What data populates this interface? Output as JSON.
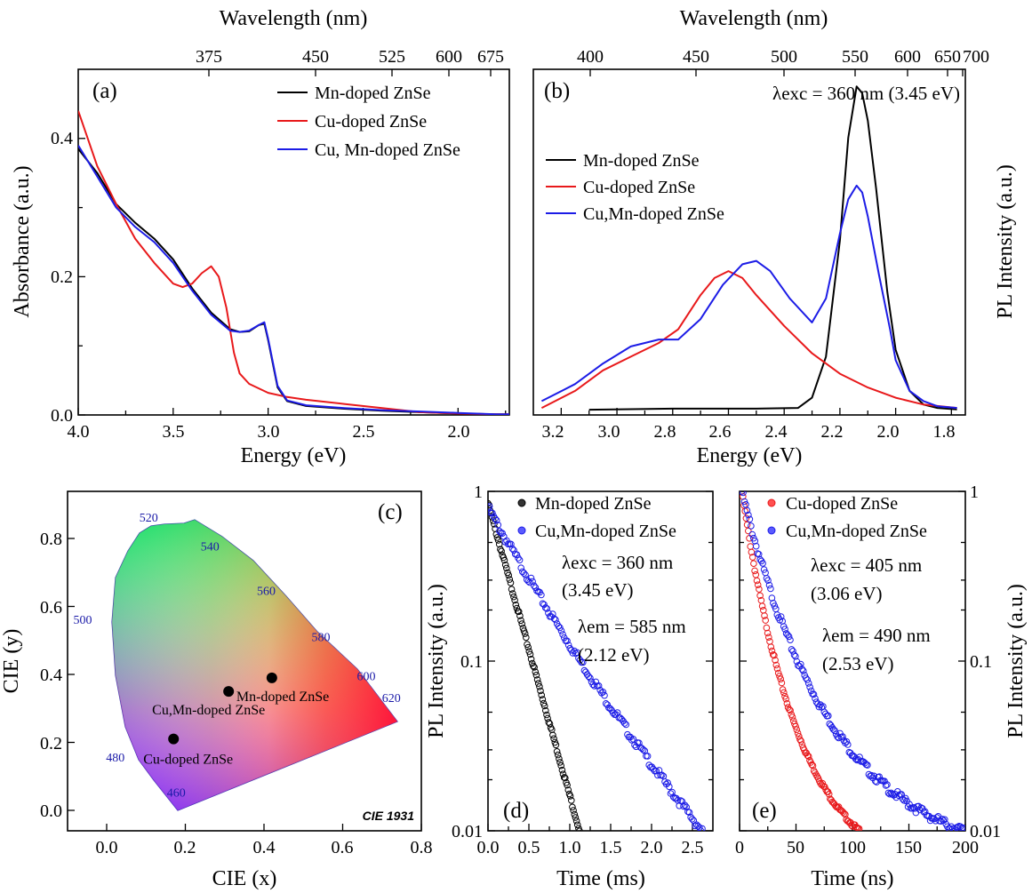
{
  "colors": {
    "mn": "#000000",
    "cu": "#e8191b",
    "cumn": "#1c1ce6",
    "wl_text": "#1a1aa8"
  },
  "chart_data": [
    {
      "panel": "(a)",
      "type": "line",
      "xlabel": "Energy (eV)",
      "ylabel": "Absorbance (a.u.)",
      "top_label": "Wavelength (nm)",
      "xlim": [
        4.0,
        1.73
      ],
      "ylim": [
        0,
        0.5
      ],
      "x_ticks": [
        "4.0",
        "3.5",
        "3.0",
        "2.5",
        "2.0"
      ],
      "y_ticks": [
        "0.0",
        "0.2",
        "0.4"
      ],
      "top_ticks": [
        "375",
        "450",
        "525",
        "600",
        "675"
      ],
      "series": [
        {
          "name": "Mn-doped ZnSe",
          "color": "#000000",
          "x": [
            4.0,
            3.9,
            3.8,
            3.7,
            3.6,
            3.5,
            3.4,
            3.3,
            3.2,
            3.15,
            3.1,
            3.05,
            3.02,
            3.0,
            2.95,
            2.9,
            2.8,
            2.6,
            2.4,
            2.2,
            2.0,
            1.8,
            1.73
          ],
          "y": [
            0.385,
            0.35,
            0.305,
            0.278,
            0.255,
            0.225,
            0.183,
            0.148,
            0.124,
            0.12,
            0.121,
            0.13,
            0.132,
            0.108,
            0.04,
            0.02,
            0.013,
            0.009,
            0.006,
            0.004,
            0.002,
            0.001,
            0.001
          ]
        },
        {
          "name": "Cu-doped ZnSe",
          "color": "#e8191b",
          "x": [
            4.0,
            3.9,
            3.8,
            3.7,
            3.6,
            3.5,
            3.45,
            3.4,
            3.35,
            3.3,
            3.26,
            3.22,
            3.18,
            3.15,
            3.1,
            3.0,
            2.9,
            2.8,
            2.6,
            2.4,
            2.2,
            2.0,
            1.8,
            1.73
          ],
          "y": [
            0.44,
            0.36,
            0.305,
            0.255,
            0.22,
            0.19,
            0.185,
            0.19,
            0.205,
            0.215,
            0.2,
            0.155,
            0.09,
            0.06,
            0.045,
            0.032,
            0.026,
            0.022,
            0.016,
            0.01,
            0.004,
            0.002,
            0.001,
            0.001
          ]
        },
        {
          "name": "Cu, Mn-doped ZnSe",
          "color": "#1c1ce6",
          "x": [
            4.0,
            3.9,
            3.8,
            3.7,
            3.6,
            3.5,
            3.4,
            3.3,
            3.2,
            3.15,
            3.1,
            3.05,
            3.02,
            3.0,
            2.95,
            2.9,
            2.8,
            2.6,
            2.4,
            2.2,
            2.0,
            1.8,
            1.73
          ],
          "y": [
            0.39,
            0.345,
            0.3,
            0.272,
            0.25,
            0.22,
            0.18,
            0.145,
            0.122,
            0.12,
            0.122,
            0.13,
            0.134,
            0.11,
            0.042,
            0.021,
            0.014,
            0.01,
            0.007,
            0.005,
            0.003,
            0.001,
            0.001
          ]
        }
      ]
    },
    {
      "panel": "(b)",
      "type": "line",
      "xlabel": "Energy (eV)",
      "ylabel": "PL Intensity (a.u.)",
      "top_label": "Wavelength (nm)",
      "annotation": "λexc = 360 nm (3.45 eV)",
      "xlim": [
        3.3,
        1.75
      ],
      "ylim": [
        0,
        1.0
      ],
      "x_ticks": [
        "3.2",
        "3.0",
        "2.8",
        "2.6",
        "2.4",
        "2.2",
        "2.0",
        "1.8"
      ],
      "top_ticks": [
        "400",
        "450",
        "500",
        "550",
        "600",
        "650",
        "700"
      ],
      "series": [
        {
          "name": "Mn-doped ZnSe",
          "color": "#000000",
          "x": [
            3.1,
            2.8,
            2.5,
            2.35,
            2.3,
            2.25,
            2.2,
            2.17,
            2.14,
            2.12,
            2.1,
            2.07,
            2.03,
            2.0,
            1.95,
            1.9,
            1.85,
            1.78
          ],
          "y": [
            0.005,
            0.008,
            0.008,
            0.01,
            0.04,
            0.16,
            0.5,
            0.8,
            0.95,
            0.93,
            0.85,
            0.65,
            0.35,
            0.18,
            0.06,
            0.02,
            0.01,
            0.006
          ]
        },
        {
          "name": "Cu-doped ZnSe",
          "color": "#e8191b",
          "x": [
            3.27,
            3.15,
            3.05,
            2.95,
            2.85,
            2.78,
            2.7,
            2.65,
            2.6,
            2.55,
            2.5,
            2.4,
            2.3,
            2.2,
            2.1,
            2.0,
            1.9,
            1.78
          ],
          "y": [
            0.01,
            0.06,
            0.12,
            0.16,
            0.2,
            0.24,
            0.34,
            0.39,
            0.41,
            0.39,
            0.34,
            0.25,
            0.17,
            0.11,
            0.07,
            0.04,
            0.02,
            0.01
          ]
        },
        {
          "name": "Cu,Mn-doped ZnSe",
          "color": "#1c1ce6",
          "x": [
            3.27,
            3.15,
            3.05,
            2.95,
            2.85,
            2.78,
            2.7,
            2.62,
            2.55,
            2.5,
            2.45,
            2.38,
            2.3,
            2.25,
            2.2,
            2.17,
            2.14,
            2.12,
            2.1,
            2.06,
            2.02,
            2.0,
            1.95,
            1.9,
            1.85,
            1.78
          ],
          "y": [
            0.03,
            0.08,
            0.14,
            0.19,
            0.21,
            0.21,
            0.27,
            0.37,
            0.43,
            0.44,
            0.41,
            0.33,
            0.26,
            0.33,
            0.52,
            0.62,
            0.66,
            0.64,
            0.57,
            0.4,
            0.24,
            0.15,
            0.06,
            0.03,
            0.015,
            0.01
          ]
        }
      ]
    },
    {
      "panel": "(c)",
      "type": "scatter",
      "xlabel": "CIE (x)",
      "ylabel": "CIE (y)",
      "diagram_label": "CIE 1931",
      "xlim": [
        -0.1,
        0.8
      ],
      "ylim": [
        -0.08,
        0.92
      ],
      "x_ticks": [
        "0.0",
        "0.2",
        "0.4",
        "0.6",
        "0.8"
      ],
      "y_ticks": [
        "0.0",
        "0.2",
        "0.4",
        "0.6",
        "0.8"
      ],
      "points": [
        {
          "label": "Mn-doped ZnSe",
          "x": 0.42,
          "y": 0.39
        },
        {
          "label": "Cu,Mn-doped ZnSe",
          "x": 0.31,
          "y": 0.35
        },
        {
          "label": "Cu-doped ZnSe",
          "x": 0.17,
          "y": 0.21
        }
      ],
      "wavelength_labels": [
        {
          "text": "520",
          "x": 0.074,
          "y": 0.834
        },
        {
          "text": "540",
          "x": 0.23,
          "y": 0.754
        },
        {
          "text": "560",
          "x": 0.373,
          "y": 0.624
        },
        {
          "text": "580",
          "x": 0.512,
          "y": 0.487
        },
        {
          "text": "600",
          "x": 0.627,
          "y": 0.373
        },
        {
          "text": "620",
          "x": 0.691,
          "y": 0.308
        },
        {
          "text": "500",
          "x": 0.008,
          "y": 0.538
        },
        {
          "text": "480",
          "x": 0.091,
          "y": 0.133
        },
        {
          "text": "460",
          "x": 0.144,
          "y": 0.03
        }
      ]
    },
    {
      "panel": "(d)",
      "type": "scatter",
      "xlabel": "Time (ms)",
      "ylabel": "PL Intensity (a.u.)",
      "yscale": "log",
      "xlim": [
        0,
        2.75
      ],
      "ylim": [
        0.01,
        1
      ],
      "x_ticks": [
        "0.0",
        "0.5",
        "1.0",
        "1.5",
        "2.0",
        "2.5"
      ],
      "y_ticks": [
        "0.01",
        "0.1",
        "1"
      ],
      "annotations": [
        "λexc = 360 nm",
        "(3.45 eV)",
        "λem = 585 nm",
        "(2.12 eV)"
      ],
      "series": [
        {
          "name": "Mn-doped ZnSe",
          "color": "#000000",
          "x_range": [
            0,
            1.12
          ],
          "y_start": 0.85,
          "y_end": 0.01
        },
        {
          "name": "Cu,Mn-doped ZnSe",
          "color": "#1c1ce6",
          "x_range": [
            0,
            2.62
          ],
          "y_start": 0.8,
          "y_end": 0.01
        }
      ]
    },
    {
      "panel": "(e)",
      "type": "scatter",
      "xlabel": "Time (ns)",
      "ylabel": "PL Intensity (a.u.)",
      "yscale": "log",
      "xlim": [
        0,
        200
      ],
      "ylim": [
        0.01,
        1
      ],
      "x_ticks": [
        "0",
        "50",
        "100",
        "150",
        "200"
      ],
      "y_ticks": [
        "0.01",
        "0.1",
        "1"
      ],
      "annotations": [
        "λexc = 405 nm",
        "(3.06 eV)",
        "λem = 490 nm",
        "(2.53 eV)"
      ],
      "series": [
        {
          "name": "Cu-doped ZnSe",
          "color": "#e8191b",
          "x_range": [
            2,
            106
          ],
          "y_start": 1.0,
          "y_end": 0.01
        },
        {
          "name": "Cu,Mn-doped ZnSe",
          "color": "#1c1ce6",
          "x_range": [
            2,
            198
          ],
          "y_start": 1.0,
          "y_end": 0.01
        }
      ]
    }
  ]
}
